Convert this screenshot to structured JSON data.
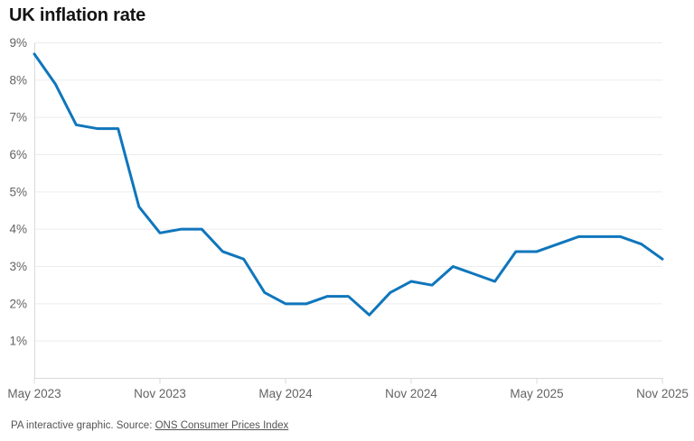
{
  "chart": {
    "title": "UK inflation rate",
    "source_prefix": "PA interactive graphic. Source: ",
    "source_link": "ONS Consumer Prices Index"
  },
  "chart_data": {
    "type": "line",
    "title": "UK inflation rate",
    "x": [
      "May 2023",
      "Jun 2023",
      "Jul 2023",
      "Aug 2023",
      "Sep 2023",
      "Oct 2023",
      "Nov 2023",
      "Dec 2023",
      "Jan 2024",
      "Feb 2024",
      "Mar 2024",
      "Apr 2024",
      "May 2024",
      "Jun 2024",
      "Jul 2024",
      "Aug 2024",
      "Sep 2024",
      "Oct 2024",
      "Nov 2024",
      "Dec 2024",
      "Jan 2025",
      "Feb 2025",
      "Mar 2025",
      "Apr 2025",
      "May 2025",
      "Jun 2025",
      "Jul 2025",
      "Aug 2025",
      "Sep 2025",
      "Oct 2025",
      "Nov 2025"
    ],
    "values": [
      8.7,
      7.9,
      6.8,
      6.7,
      6.7,
      4.6,
      3.9,
      4.0,
      4.0,
      3.4,
      3.2,
      2.3,
      2.0,
      2.0,
      2.2,
      2.2,
      1.7,
      2.3,
      2.6,
      2.5,
      3.0,
      2.8,
      2.6,
      3.4,
      3.4,
      3.6,
      3.8,
      3.8,
      3.8,
      3.6,
      3.2
    ],
    "x_tick_labels": [
      "May 2023",
      "Nov 2023",
      "May 2024",
      "Nov 2024",
      "May 2025",
      "Nov 2025"
    ],
    "y_tick_labels": [
      "1%",
      "2%",
      "3%",
      "4%",
      "5%",
      "6%",
      "7%",
      "8%",
      "9%"
    ],
    "ylim": [
      0,
      9
    ],
    "xlabel": "",
    "ylabel": "",
    "grid": "horizontal",
    "legend": "none",
    "line_color": "#0f76bc",
    "grid_color": "#ececec",
    "axis_color": "#d9d9d9",
    "label_color": "#636363"
  }
}
